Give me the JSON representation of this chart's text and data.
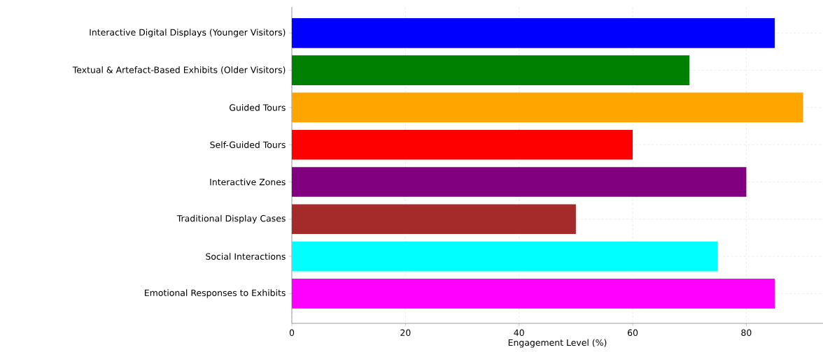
{
  "chart_data": {
    "type": "bar",
    "orientation": "horizontal",
    "xlabel": "Engagement Level (%)",
    "categories": [
      "Interactive Digital Displays (Younger Visitors)",
      "Textual & Artefact-Based Exhibits (Older Visitors)",
      "Guided Tours",
      "Self-Guided Tours",
      "Interactive Zones",
      "Traditional Display Cases",
      "Social Interactions",
      "Emotional Responses to Exhibits"
    ],
    "values": [
      85,
      70,
      90,
      60,
      80,
      50,
      75,
      85
    ],
    "colors": [
      "#0000ff",
      "#008000",
      "#ffa500",
      "#ff0000",
      "#800080",
      "#a52a2a",
      "#00ffff",
      "#ff00ff"
    ],
    "xlim": [
      0,
      93.5
    ],
    "xticks": [
      0,
      20,
      40,
      60,
      80
    ],
    "grid": true
  }
}
